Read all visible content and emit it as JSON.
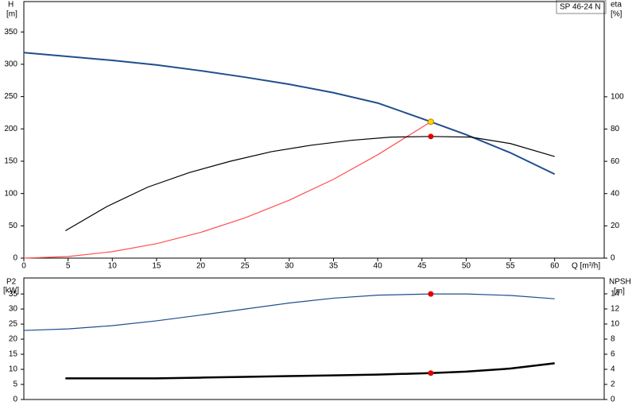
{
  "chart_data": [
    {
      "type": "line",
      "title": "SP 46-24 N",
      "ylabel": [
        "H",
        "[m]"
      ],
      "y2label": [
        "eta",
        "[%]"
      ],
      "xlabel": "Q [m³/h]",
      "xlim": [
        0,
        65.6
      ],
      "xticks": [
        0,
        5,
        10,
        15,
        20,
        25,
        30,
        35,
        40,
        45,
        50,
        55,
        60
      ],
      "ylim": [
        0,
        397
      ],
      "yticks": [
        0,
        50,
        100,
        150,
        200,
        250,
        300,
        350
      ],
      "y2lim": [
        0,
        159
      ],
      "y2ticks": [
        0,
        20,
        40,
        60,
        80,
        100
      ],
      "series": [
        {
          "color": "#ff5050",
          "style": "line",
          "x": [
            0,
            5,
            10,
            15,
            20,
            25,
            30,
            35,
            40,
            46
          ],
          "values": [
            0,
            2.5,
            10,
            22.4,
            39.9,
            62.3,
            89.7,
            122,
            160,
            211
          ]
        },
        {
          "color": "#1f4e8c",
          "style": "line",
          "x": [
            0,
            5,
            10,
            15,
            20,
            25,
            30,
            35,
            40,
            45,
            50,
            55,
            60
          ],
          "values": [
            318,
            312,
            306,
            299,
            290,
            280,
            269,
            256,
            240,
            216,
            191,
            163,
            130
          ]
        },
        {
          "color": "#000000",
          "style": "line",
          "axis": "y2",
          "x": [
            4.7,
            9.4,
            14,
            18.7,
            23.3,
            28,
            32.5,
            37,
            41.5,
            46,
            50.5,
            55,
            60
          ],
          "values": [
            17,
            32,
            44,
            53,
            60,
            66,
            70,
            73,
            75,
            75.4,
            75,
            71,
            63
          ]
        },
        {
          "color": "#ffd700",
          "style": "dot",
          "x": [
            46
          ],
          "values": [
            211
          ]
        },
        {
          "color": "#e00000",
          "style": "dot",
          "axis": "y2",
          "x": [
            46
          ],
          "values": [
            75.4
          ]
        }
      ]
    },
    {
      "type": "line",
      "ylabel": [
        "P2",
        "[kW]"
      ],
      "y2label": [
        "NPSH",
        "[m]"
      ],
      "xlim": [
        0,
        65.6
      ],
      "ylim": [
        0,
        40.3
      ],
      "yticks": [
        0,
        5,
        10,
        15,
        20,
        25,
        30,
        35
      ],
      "y2lim": [
        0,
        16.1
      ],
      "y2ticks": [
        0,
        2,
        4,
        6,
        8,
        10,
        12,
        14
      ],
      "series": [
        {
          "color": "#1f4e8c",
          "style": "line",
          "x": [
            0,
            5,
            10,
            15,
            20,
            25,
            30,
            35,
            40,
            46,
            50,
            55,
            60
          ],
          "values": [
            22.9,
            23.4,
            24.5,
            26.1,
            28,
            30,
            32,
            33.6,
            34.6,
            35,
            35,
            34.5,
            33.4
          ]
        },
        {
          "color": "#000000",
          "style": "thick",
          "axis": "y2",
          "x": [
            4.7,
            10,
            15,
            20,
            25,
            30,
            35,
            40,
            46,
            50,
            55,
            60
          ],
          "values": [
            2.8,
            2.8,
            2.8,
            2.9,
            3.0,
            3.1,
            3.2,
            3.3,
            3.5,
            3.7,
            4.1,
            4.8
          ]
        },
        {
          "color": "#e00000",
          "style": "dot",
          "x": [
            46
          ],
          "values": [
            35
          ]
        },
        {
          "color": "#e00000",
          "style": "dot",
          "axis": "y2",
          "x": [
            46
          ],
          "values": [
            3.5
          ]
        }
      ]
    }
  ]
}
